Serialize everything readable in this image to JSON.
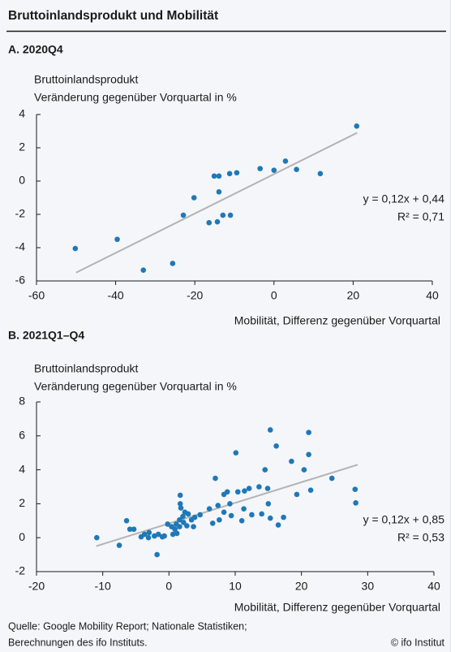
{
  "title": "Bruttoinlandsprodukt und Mobilität",
  "chart_data": [
    {
      "type": "scatter",
      "title": "A. 2020Q4",
      "y_label": [
        "Bruttoinlandsprodukt",
        "Veränderung gegenüber Vorquartal in %"
      ],
      "x_label": "Mobilität, Differenz gegenüber Vorquartal",
      "xlim": [
        -60,
        40
      ],
      "xticks": [
        -60,
        -40,
        -20,
        0,
        20,
        40
      ],
      "ylim": [
        -6,
        4
      ],
      "yticks": [
        -6,
        -4,
        -2,
        0,
        2,
        4
      ],
      "color": "#1f78b8",
      "trend_color": "#b3b3b3",
      "x": [
        -50.2,
        -39.6,
        -33,
        -25.6,
        -22.9,
        -20.2,
        -16.4,
        -14.3,
        -12.9,
        -11.0,
        -15.1,
        -13.9,
        -13.9,
        -11.2,
        -9.4,
        -3.5,
        0,
        2.9,
        5.7,
        11.7,
        20.9
      ],
      "y": [
        -4.05,
        -3.5,
        -5.35,
        -4.95,
        -2.05,
        -1.0,
        -2.5,
        -2.45,
        -2.05,
        -2.05,
        0.3,
        0.3,
        -0.65,
        0.45,
        0.5,
        0.75,
        0.65,
        1.2,
        0.7,
        0.45,
        3.3
      ],
      "trend_x": [
        -50,
        21
      ],
      "trend_y": [
        -5.5,
        2.9
      ],
      "annotations": [
        "y = 0,12x + 0,44",
        "R² = 0,71"
      ]
    },
    {
      "type": "scatter",
      "title": "B. 2021Q1–Q4",
      "y_label": [
        "Bruttoinlandsprodukt",
        "Veränderung gegenüber Vorquartal in %"
      ],
      "x_label": "Mobilität, Differenz gegenüber Vorquartal",
      "xlim": [
        -20,
        40
      ],
      "xticks": [
        -20,
        -10,
        0,
        10,
        20,
        30,
        40
      ],
      "ylim": [
        -2,
        8
      ],
      "yticks": [
        -2,
        0,
        2,
        4,
        6,
        8
      ],
      "color": "#1f78b8",
      "trend_color": "#b3b3b3",
      "x": [
        -10.9,
        -7.5,
        -6.4,
        -5.9,
        -5.3,
        -4.2,
        -3.7,
        -3.1,
        -3.0,
        -2.2,
        -1.8,
        -1.6,
        -1.0,
        -0.7,
        -0.2,
        0.4,
        0.6,
        0.9,
        1.1,
        1.2,
        1.6,
        1.6,
        1.7,
        1.7,
        1.8,
        2.1,
        2.2,
        2.4,
        2.7,
        2.9,
        3.4,
        3.7,
        3.9,
        4.7,
        6.1,
        6.6,
        7.0,
        7.4,
        7.6,
        8.3,
        8.3,
        8.8,
        9.2,
        9.4,
        10.1,
        10.4,
        11.0,
        11.3,
        11.4,
        12.1,
        12.5,
        13.6,
        14.0,
        14.5,
        14.9,
        15.0,
        15.3,
        15.3,
        16.2,
        16.5,
        17.3,
        18.5,
        19.3,
        20.4,
        21.1,
        21.1,
        21.4,
        24.6,
        28.1,
        28.2
      ],
      "y": [
        0,
        -0.45,
        1.0,
        0.5,
        0.5,
        0.05,
        0.2,
        0,
        0.3,
        0.1,
        -1.0,
        0.2,
        0.05,
        0.1,
        0.8,
        0.65,
        0.2,
        0.5,
        0.8,
        0.25,
        1.05,
        0.65,
        2.0,
        2.5,
        1.75,
        1.25,
        0.9,
        1.5,
        0.7,
        1.4,
        1.05,
        0.65,
        1.2,
        1.35,
        1.7,
        0.85,
        3.5,
        1.9,
        1.05,
        2.55,
        1.5,
        2.7,
        2.0,
        1.3,
        5.0,
        2.7,
        1.0,
        1.7,
        2.75,
        2.9,
        1.35,
        3.0,
        1.4,
        4.0,
        2.9,
        2.0,
        6.35,
        1.15,
        5.4,
        0.75,
        1.2,
        4.5,
        2.55,
        4.0,
        6.2,
        4.9,
        2.8,
        3.5,
        2.85,
        2.05
      ],
      "trend_x": [
        -11,
        28.5
      ],
      "trend_y": [
        -0.5,
        4.3
      ],
      "annotations": [
        "y = 0,12x + 0,85",
        "R² = 0,53"
      ]
    }
  ],
  "source": [
    "Quelle: Google Mobility Report; Nationale Statistiken;",
    "Berechnungen des ifo Instituts."
  ],
  "credit": "© ifo Institut"
}
